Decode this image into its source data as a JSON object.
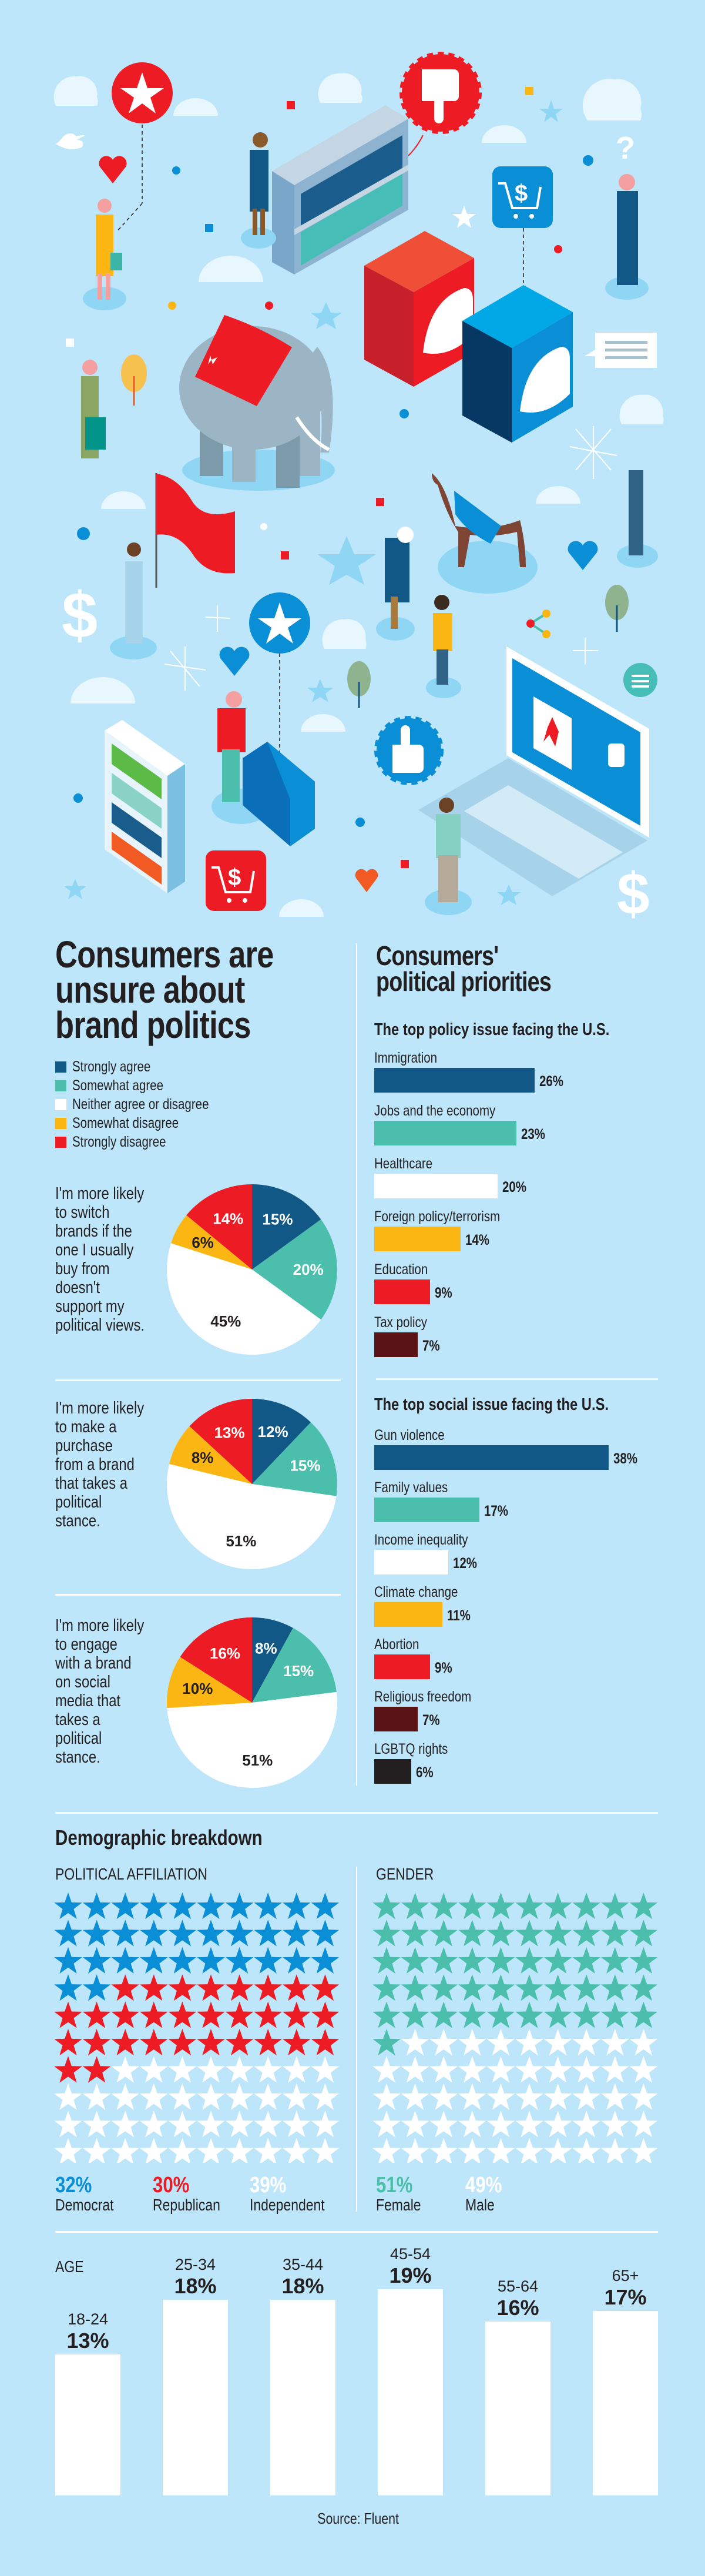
{
  "colors": {
    "background": "#bee6fa",
    "strongly_agree": "#115886",
    "somewhat_agree": "#4bbfab",
    "neither": "#ffffff",
    "somewhat_disagree": "#fcb614",
    "strongly_disagree": "#ed1c24",
    "dark_red": "#5b1416",
    "black": "#231f20",
    "democrat_blue": "#0a8ed6",
    "republican_red": "#ed1c24",
    "female_teal": "#4bbfab"
  },
  "illustration": {
    "icons": [
      "star-badge-icon",
      "thumbs-down-icon",
      "shopping-cart-icon",
      "elephant-icon",
      "donkey-icon",
      "flag-icon",
      "laptop-icon",
      "thumbs-up-icon",
      "heart-icon",
      "cloud-icon",
      "twitter-bird-icon",
      "share-icon",
      "chat-bubble-icon",
      "dollar-icon",
      "question-icon"
    ],
    "dollar_glyph": "$",
    "question_glyph": "?"
  },
  "left": {
    "title_lines": [
      "Consumers are",
      "unsure about",
      "brand politics"
    ],
    "legend": [
      {
        "label": "Strongly agree",
        "color": "#115886"
      },
      {
        "label": "Somewhat agree",
        "color": "#4bbfab"
      },
      {
        "label": "Neither agree or disagree",
        "color": "#ffffff"
      },
      {
        "label": "Somewhat disagree",
        "color": "#fcb614"
      },
      {
        "label": "Strongly disagree",
        "color": "#ed1c24"
      }
    ]
  },
  "right": {
    "title_lines": [
      "Consumers'",
      "political priorities"
    ]
  },
  "chart_data": [
    {
      "type": "pie",
      "title": "I'm more likely to switch brands if the one I usually buy from doesn't support my political views.",
      "text_lines": [
        "I'm more likely",
        "to switch",
        "brands if the",
        "one I usually",
        "buy from",
        "doesn't",
        "support my",
        "political views."
      ],
      "categories": [
        "Strongly agree",
        "Somewhat agree",
        "Neither agree or disagree",
        "Somewhat disagree",
        "Strongly disagree"
      ],
      "values": [
        15,
        20,
        45,
        6,
        14
      ],
      "labels": [
        "15%",
        "20%",
        "45%",
        "6%",
        "14%"
      ]
    },
    {
      "type": "pie",
      "title": "I'm more likely to make a purchase from a brand that takes a political stance.",
      "text_lines": [
        "I'm more likely",
        "to make a",
        "purchase",
        "from a brand",
        "that takes a",
        "political",
        "stance."
      ],
      "categories": [
        "Strongly agree",
        "Somewhat agree",
        "Neither agree or disagree",
        "Somewhat disagree",
        "Strongly disagree"
      ],
      "values": [
        12,
        15,
        51,
        8,
        13
      ],
      "labels": [
        "12%",
        "15%",
        "51%",
        "8%",
        "13%"
      ]
    },
    {
      "type": "pie",
      "title": "I'm more likely to engage with a brand on social media that takes a political stance.",
      "text_lines": [
        "I'm more likely",
        "to engage",
        "with a brand",
        "on social",
        "media that",
        "takes a",
        "political",
        "stance."
      ],
      "categories": [
        "Strongly agree",
        "Somewhat agree",
        "Neither agree or disagree",
        "Somewhat disagree",
        "Strongly disagree"
      ],
      "values": [
        8,
        15,
        51,
        10,
        16
      ],
      "labels": [
        "8%",
        "15%",
        "51%",
        "10%",
        "16%"
      ]
    },
    {
      "type": "bar",
      "orientation": "horizontal",
      "title": "The top policy issue facing the U.S.",
      "categories": [
        "Immigration",
        "Jobs and the economy",
        "Healthcare",
        "Foreign policy/terrorism",
        "Education",
        "Tax policy"
      ],
      "values": [
        26,
        23,
        20,
        14,
        9,
        7
      ],
      "labels": [
        "26%",
        "23%",
        "20%",
        "14%",
        "9%",
        "7%"
      ],
      "colors": [
        "#115886",
        "#4bbfab",
        "#ffffff",
        "#fcb614",
        "#ed1c24",
        "#5b1416"
      ]
    },
    {
      "type": "bar",
      "orientation": "horizontal",
      "title": "The top social issue facing the U.S.",
      "categories": [
        "Gun violence",
        "Family values",
        "Income inequality",
        "Climate change",
        "Abortion",
        "Religious freedom",
        "LGBTQ rights"
      ],
      "values": [
        38,
        17,
        12,
        11,
        9,
        7,
        6
      ],
      "labels": [
        "38%",
        "17%",
        "12%",
        "11%",
        "9%",
        "7%",
        "6%"
      ],
      "colors": [
        "#115886",
        "#4bbfab",
        "#ffffff",
        "#fcb614",
        "#ed1c24",
        "#5b1416",
        "#231f20"
      ]
    },
    {
      "type": "pictogram",
      "title": "POLITICAL AFFILIATION",
      "categories": [
        "Democrat",
        "Republican",
        "Independent"
      ],
      "values": [
        32,
        30,
        39
      ],
      "labels": [
        "32%",
        "30%",
        "39%"
      ],
      "star_counts": [
        32,
        30,
        38
      ],
      "colors": [
        "#0a8ed6",
        "#ed1c24",
        "#ffffff"
      ]
    },
    {
      "type": "pictogram",
      "title": "GENDER",
      "categories": [
        "Female",
        "Male"
      ],
      "values": [
        51,
        49
      ],
      "labels": [
        "51%",
        "49%"
      ],
      "star_counts": [
        51,
        49
      ],
      "colors": [
        "#4bbfab",
        "#ffffff"
      ]
    },
    {
      "type": "bar",
      "orientation": "vertical",
      "title": "AGE",
      "categories": [
        "18-24",
        "25-34",
        "35-44",
        "45-54",
        "55-64",
        "65+"
      ],
      "values": [
        13,
        18,
        18,
        19,
        16,
        17
      ],
      "labels": [
        "13%",
        "18%",
        "18%",
        "19%",
        "16%",
        "17%"
      ],
      "color": "#ffffff"
    }
  ],
  "demographics": {
    "title": "Demographic breakdown"
  },
  "source": "Source: Fluent"
}
